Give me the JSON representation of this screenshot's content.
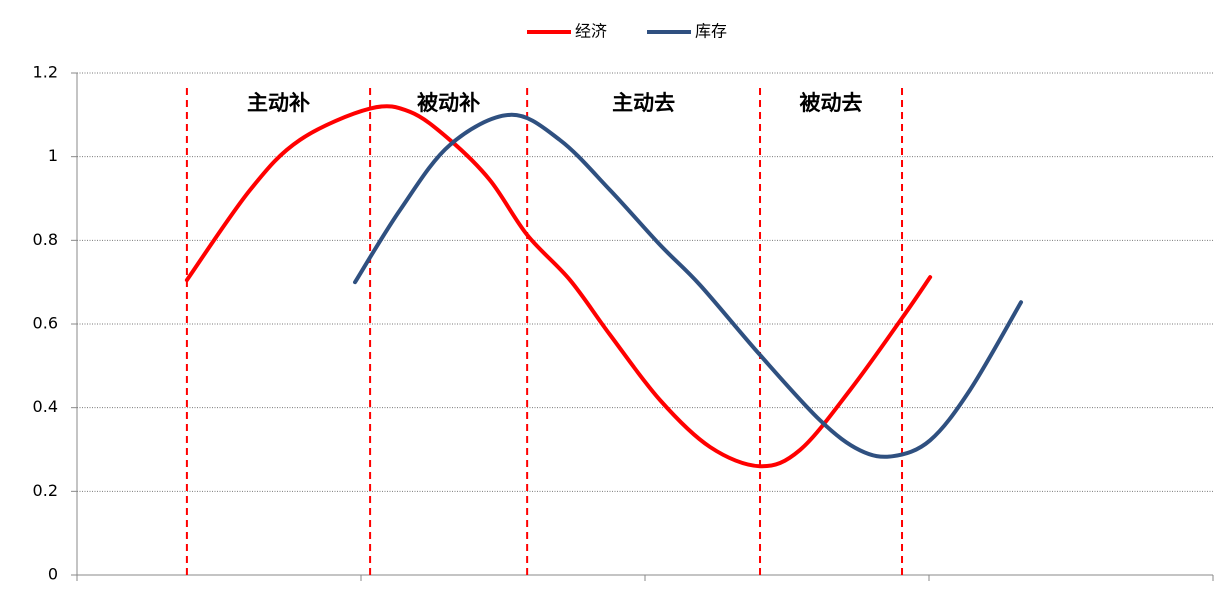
{
  "chart_data": {
    "type": "line",
    "xlim": [
      0,
      40
    ],
    "ylim": [
      0,
      1.2
    ],
    "yticks": [
      0,
      0.2,
      0.4,
      0.6,
      0.8,
      1,
      1.2
    ],
    "grid": true,
    "legend": "top",
    "series": [
      {
        "name": "经济",
        "color": "#ff0000",
        "x": [
          3.87,
          6.09,
          7.85,
          10.32,
          11.73,
          13.13,
          14.54,
          15.85,
          17.36,
          18.77,
          20.53,
          22.29,
          24.05,
          25.46,
          27.22,
          29.05,
          30.04
        ],
        "values": [
          0.705,
          0.92,
          1.04,
          1.115,
          1.107,
          1.04,
          0.944,
          0.813,
          0.705,
          0.574,
          0.418,
          0.306,
          0.26,
          0.299,
          0.442,
          0.614,
          0.712
        ]
      },
      {
        "name": "库存",
        "color": "#2f5080",
        "x": [
          9.79,
          11.37,
          13.13,
          15.25,
          17.0,
          18.77,
          20.53,
          21.94,
          24.05,
          26.16,
          27.57,
          28.73,
          30.04,
          31.44,
          33.24
        ],
        "values": [
          0.7,
          0.872,
          1.028,
          1.1,
          1.04,
          0.92,
          0.789,
          0.693,
          0.526,
          0.37,
          0.298,
          0.284,
          0.322,
          0.442,
          0.652
        ]
      }
    ],
    "dividers": [
      3.87,
      10.32,
      15.85,
      24.05,
      29.05
    ],
    "phase_labels": [
      "主动补",
      "被动补",
      "主动去",
      "被动去"
    ]
  }
}
